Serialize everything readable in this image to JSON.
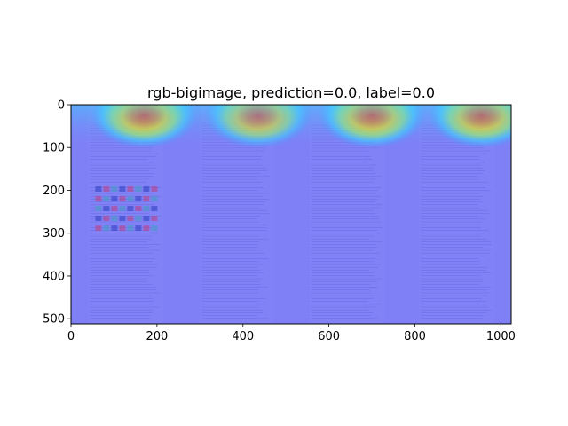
{
  "chart_data": {
    "type": "heatmap",
    "title": "rgb-bigimage, prediction=0.0, label=0.0",
    "xlabel": "",
    "ylabel": "",
    "xlim": [
      0,
      1024
    ],
    "ylim": [
      512,
      0
    ],
    "x_ticks": [
      0,
      200,
      400,
      600,
      800,
      1000
    ],
    "y_ticks": [
      0,
      100,
      200,
      300,
      400,
      500
    ],
    "grid": false,
    "colormap": "jet",
    "base_color": "#7f7ff6",
    "hotspots": [
      {
        "x": 170,
        "y": 25,
        "intensity": 1.0
      },
      {
        "x": 435,
        "y": 25,
        "intensity": 0.9
      },
      {
        "x": 700,
        "y": 25,
        "intensity": 1.0
      },
      {
        "x": 955,
        "y": 25,
        "intensity": 1.0
      }
    ],
    "pages": [
      {
        "x_start": 40,
        "x_end": 215
      },
      {
        "x_start": 300,
        "x_end": 470
      },
      {
        "x_start": 555,
        "x_end": 730
      },
      {
        "x_start": 810,
        "x_end": 985
      }
    ]
  }
}
